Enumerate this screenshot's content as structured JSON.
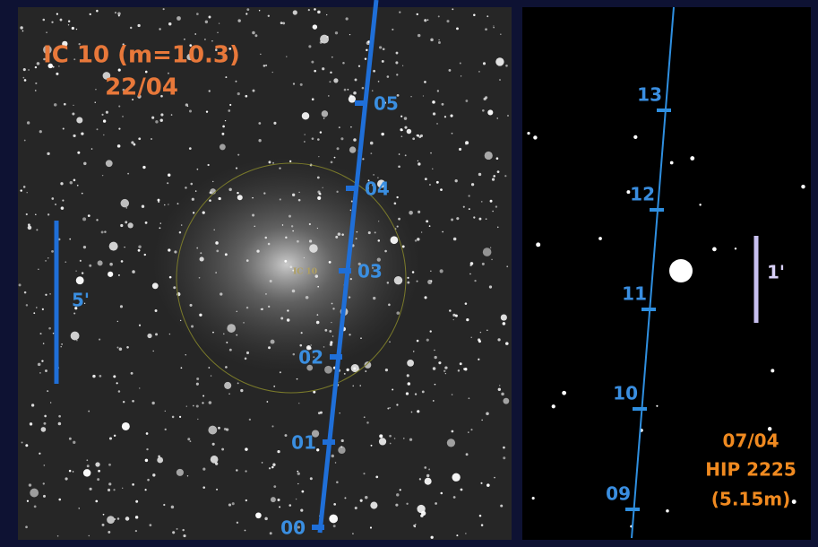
{
  "left_panel": {
    "title": "IC 10 (m=10.3)",
    "date": "22/04",
    "scale_label": "5'",
    "object_label": "IC 10",
    "track_labels": [
      "00",
      "01",
      "02",
      "03",
      "04",
      "05"
    ]
  },
  "right_panel": {
    "date": "07/04",
    "star_name": "HIP 2225",
    "magnitude": "(5.15m)",
    "scale_label": "1'",
    "track_labels": [
      "09",
      "10",
      "11",
      "12",
      "13"
    ]
  }
}
